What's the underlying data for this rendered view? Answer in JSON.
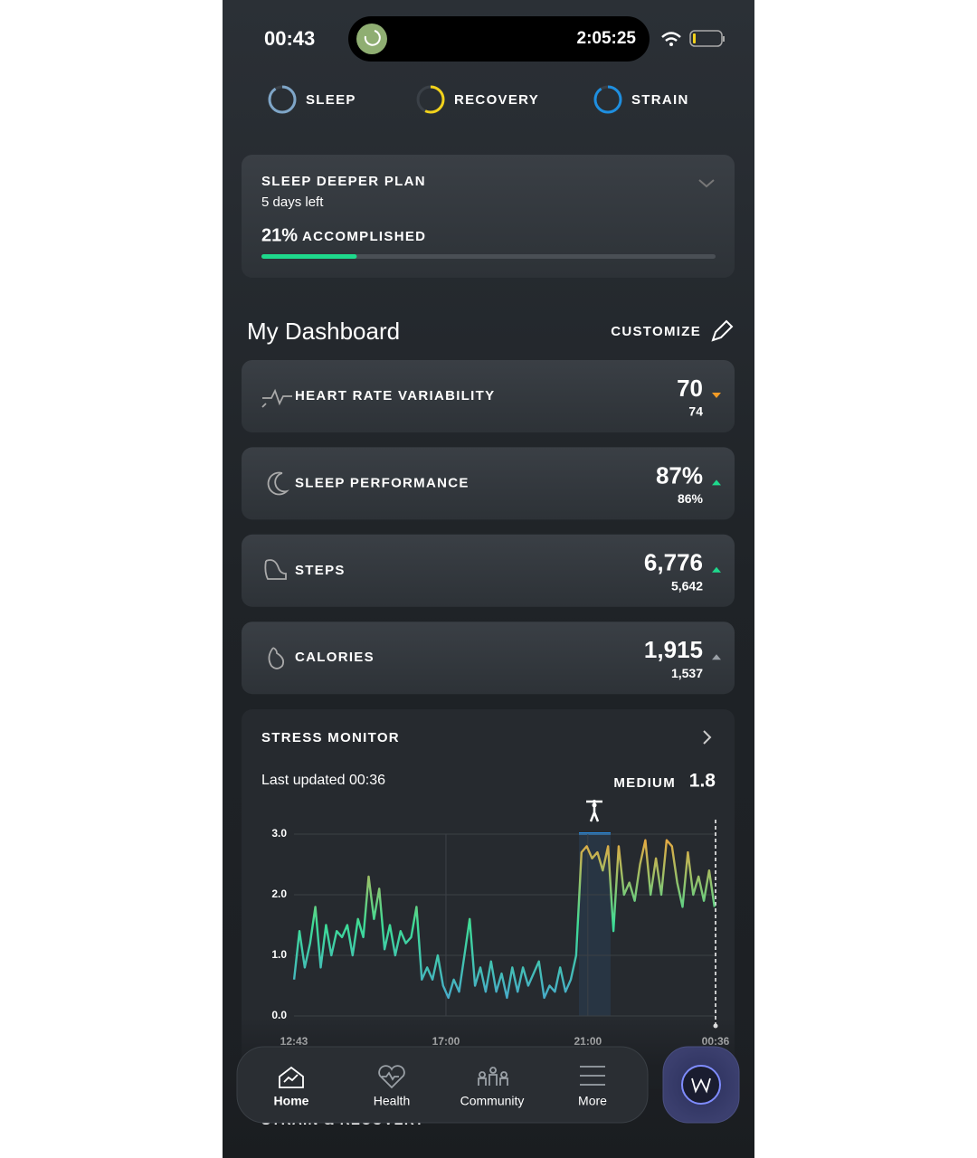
{
  "status_bar": {
    "time": "00:43",
    "timer": "2:05:25"
  },
  "tabs": [
    {
      "label": "SLEEP",
      "color": "#7fa6c8"
    },
    {
      "label": "RECOVERY",
      "color": "#f2d21b"
    },
    {
      "label": "STRAIN",
      "color": "#1e8fe0"
    }
  ],
  "plan": {
    "title": "SLEEP DEEPER PLAN",
    "subtitle": "5 days left",
    "progress": {
      "value": 21,
      "label": "21%"
    },
    "status": "ACCOMPLISHED",
    "color": "#1ed98c"
  },
  "dashboard": {
    "title": "My Dashboard",
    "action": "CUSTOMIZE",
    "metrics": [
      {
        "name": "HEART RATE VARIABILITY",
        "value": "70",
        "baseline": "74",
        "trend": "down",
        "trend_color": "#f29b26"
      },
      {
        "name": "SLEEP PERFORMANCE",
        "value": "87%",
        "baseline": "86%",
        "trend": "up",
        "trend_color": "#1ed98c"
      },
      {
        "name": "STEPS",
        "value": "6,776",
        "baseline": "5,642",
        "trend": "up",
        "trend_color": "#1ed98c"
      },
      {
        "name": "CALORIES",
        "value": "1,915",
        "baseline": "1,537",
        "trend": "up",
        "trend_color": "#9aa0a6"
      }
    ]
  },
  "stress": {
    "title": "STRESS MONITOR",
    "updated": "Last updated 00:36",
    "level": "MEDIUM",
    "level_color": "#1ed98c",
    "score": "1.8"
  },
  "chart_data": {
    "type": "line",
    "x": [
      12.72,
      12.87,
      13.02,
      13.17,
      13.32,
      13.47,
      13.62,
      13.77,
      13.92,
      14.07,
      14.22,
      14.37,
      14.52,
      14.67,
      14.82,
      14.97,
      15.12,
      15.27,
      15.42,
      15.57,
      15.72,
      15.87,
      16.02,
      16.17,
      16.32,
      16.47,
      16.62,
      16.77,
      16.92,
      17.07,
      17.22,
      17.37,
      17.52,
      17.67,
      17.82,
      17.97,
      18.12,
      18.27,
      18.42,
      18.57,
      18.72,
      18.87,
      19.02,
      19.17,
      19.32,
      19.47,
      19.62,
      19.77,
      19.92,
      20.07,
      20.22,
      20.37,
      20.52,
      20.67,
      20.82,
      20.97,
      21.12,
      21.27,
      21.42,
      21.57,
      21.72,
      21.87,
      22.02,
      22.17,
      22.32,
      22.47,
      22.62,
      22.77,
      22.92,
      23.07,
      23.22,
      23.37,
      23.52,
      23.67,
      23.82,
      23.97,
      24.12,
      24.27,
      24.42,
      24.57
    ],
    "series": [
      {
        "values": [
          0.6,
          1.4,
          0.8,
          1.2,
          1.8,
          0.8,
          1.5,
          1.0,
          1.4,
          1.3,
          1.5,
          1.0,
          1.6,
          1.3,
          2.3,
          1.6,
          2.1,
          1.1,
          1.5,
          1.0,
          1.4,
          1.2,
          1.3,
          1.8,
          0.6,
          0.8,
          0.6,
          1.0,
          0.5,
          0.3,
          0.6,
          0.4,
          1.0,
          1.6,
          0.5,
          0.8,
          0.4,
          0.9,
          0.4,
          0.7,
          0.3,
          0.8,
          0.4,
          0.8,
          0.5,
          0.7,
          0.9,
          0.3,
          0.5,
          0.4,
          0.8,
          0.4,
          0.6,
          1.0,
          2.7,
          2.8,
          2.6,
          2.7,
          2.4,
          2.8,
          1.4,
          2.8,
          2.0,
          2.2,
          1.9,
          2.5,
          2.9,
          2.0,
          2.6,
          2.0,
          2.9,
          2.8,
          2.2,
          1.8,
          2.7,
          2.0,
          2.3,
          1.9,
          2.4,
          1.8
        ],
        "gradient": [
          "#4a9fd6",
          "#3ddc97",
          "#f0a63c"
        ]
      }
    ],
    "xlim": [
      12.717,
      24.6
    ],
    "xticks": [
      {
        "value": 12.717,
        "label": "12:43"
      },
      {
        "value": 17,
        "label": "17:00"
      },
      {
        "value": 21,
        "label": "21:00"
      },
      {
        "value": 24.6,
        "label": "00:36"
      }
    ],
    "ylim": [
      0,
      3
    ],
    "yticks": [
      {
        "value": 0,
        "label": "0.0"
      },
      {
        "value": 1,
        "label": "1.0"
      },
      {
        "value": 2,
        "label": "2.0"
      },
      {
        "value": 3,
        "label": "3.0"
      }
    ],
    "grid": true
  },
  "next_section": "STRAIN & RECOVERY",
  "nav": {
    "items": [
      {
        "label": "Home",
        "active": true
      },
      {
        "label": "Health",
        "active": false
      },
      {
        "label": "Community",
        "active": false
      },
      {
        "label": "More",
        "active": false
      }
    ]
  }
}
